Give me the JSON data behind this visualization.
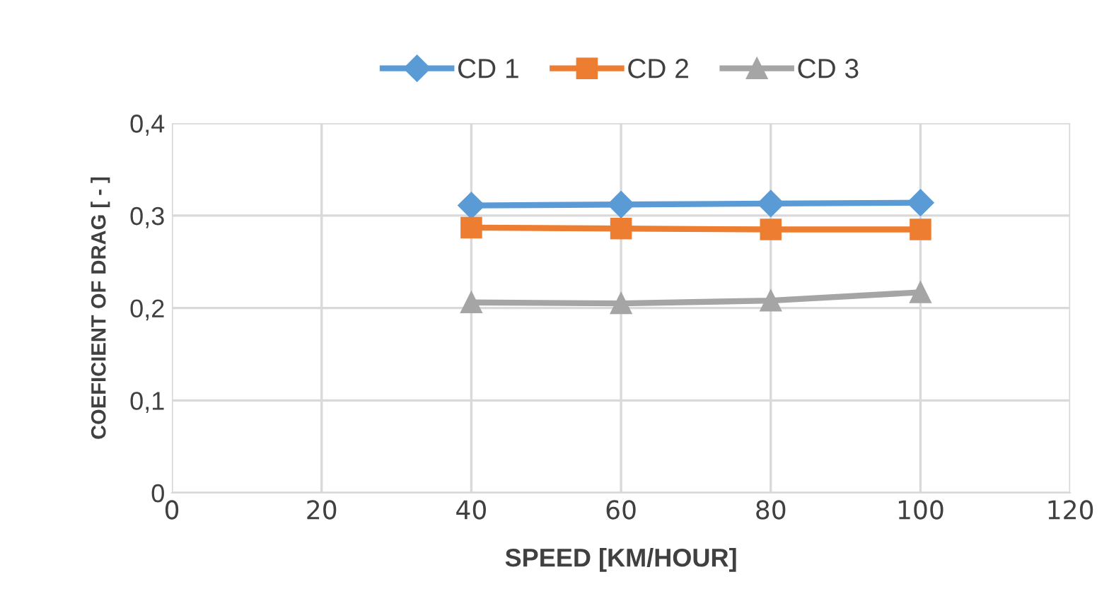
{
  "chart_data": {
    "type": "line",
    "xlabel": "SPEED [KM/HOUR]",
    "ylabel": "COEFICIENT OF DRAG [ - ]",
    "x": [
      40,
      60,
      80,
      100
    ],
    "series": [
      {
        "name": "CD 1",
        "color": "#5b9bd5",
        "marker": "diamond",
        "values": [
          0.311,
          0.312,
          0.313,
          0.314
        ]
      },
      {
        "name": "CD 2",
        "color": "#ed7d31",
        "marker": "square",
        "values": [
          0.287,
          0.286,
          0.285,
          0.285
        ]
      },
      {
        "name": "CD 3",
        "color": "#a5a5a5",
        "marker": "triangle",
        "values": [
          0.206,
          0.205,
          0.208,
          0.217
        ]
      }
    ],
    "xlim": [
      0,
      120
    ],
    "xticks": [
      0,
      20,
      40,
      60,
      80,
      100,
      120
    ],
    "ylim": [
      0,
      0.4
    ],
    "yticks": [
      {
        "value": 0,
        "label": "0"
      },
      {
        "value": 0.1,
        "label": "0,1"
      },
      {
        "value": 0.2,
        "label": "0,2"
      },
      {
        "value": 0.3,
        "label": "0,3"
      },
      {
        "value": 0.4,
        "label": "0,4"
      }
    ],
    "grid": true,
    "legend": "top",
    "line_style": "solid"
  }
}
